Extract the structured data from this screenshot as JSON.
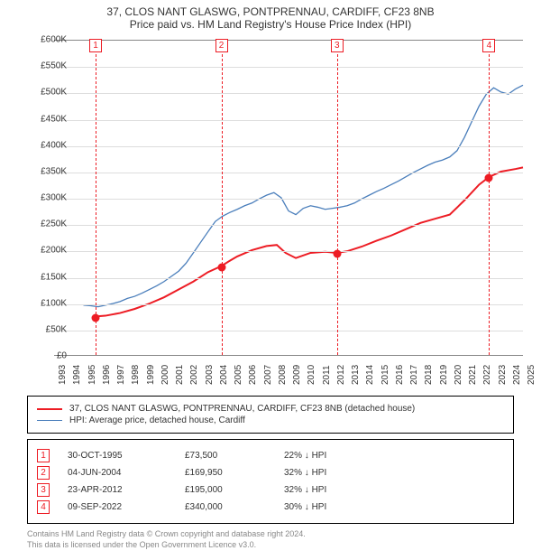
{
  "title": {
    "line1": "37, CLOS NANT GLASWG, PONTPRENNAU, CARDIFF, CF23 8NB",
    "line2": "Price paid vs. HM Land Registry's House Price Index (HPI)"
  },
  "chart": {
    "type": "line",
    "background_color": "#ffffff",
    "grid_color": "#dddddd",
    "axis_color": "#888888",
    "y_axis": {
      "min": 0,
      "max": 600000,
      "tick_step": 50000,
      "labels": [
        "£0",
        "£50K",
        "£100K",
        "£150K",
        "£200K",
        "£250K",
        "£300K",
        "£350K",
        "£400K",
        "£450K",
        "£500K",
        "£550K",
        "£600K"
      ],
      "label_fontsize": 10
    },
    "x_axis": {
      "min": 1993,
      "max": 2025,
      "labels": [
        "1993",
        "1994",
        "1995",
        "1996",
        "1997",
        "1998",
        "1999",
        "2000",
        "2001",
        "2002",
        "2003",
        "2004",
        "2005",
        "2006",
        "2007",
        "2008",
        "2009",
        "2010",
        "2011",
        "2012",
        "2013",
        "2014",
        "2015",
        "2016",
        "2017",
        "2018",
        "2019",
        "2020",
        "2021",
        "2022",
        "2023",
        "2024",
        "2025"
      ],
      "label_fontsize": 10
    },
    "series": [
      {
        "name": "property",
        "label": "37, CLOS NANT GLASWG, PONTPRENNAU, CARDIFF, CF23 8NB (detached house)",
        "color": "#ed1c24",
        "line_width": 2,
        "points": [
          [
            1995.83,
            73500
          ],
          [
            1996.5,
            75000
          ],
          [
            1997.5,
            80000
          ],
          [
            1998.5,
            88000
          ],
          [
            1999.5,
            98000
          ],
          [
            2000.5,
            110000
          ],
          [
            2001.5,
            125000
          ],
          [
            2002.5,
            140000
          ],
          [
            2003.5,
            158000
          ],
          [
            2004.42,
            169950
          ],
          [
            2005.0,
            180000
          ],
          [
            2005.5,
            188000
          ],
          [
            2006.5,
            200000
          ],
          [
            2007.5,
            208000
          ],
          [
            2008.2,
            210000
          ],
          [
            2008.8,
            195000
          ],
          [
            2009.5,
            185000
          ],
          [
            2010.5,
            195000
          ],
          [
            2011.5,
            197000
          ],
          [
            2012.31,
            195000
          ],
          [
            2013.0,
            198000
          ],
          [
            2014.0,
            207000
          ],
          [
            2015.0,
            218000
          ],
          [
            2016.0,
            228000
          ],
          [
            2017.0,
            240000
          ],
          [
            2018.0,
            252000
          ],
          [
            2019.0,
            260000
          ],
          [
            2020.0,
            268000
          ],
          [
            2021.0,
            295000
          ],
          [
            2022.0,
            325000
          ],
          [
            2022.69,
            340000
          ],
          [
            2023.5,
            350000
          ],
          [
            2024.5,
            355000
          ],
          [
            2025.0,
            358000
          ]
        ]
      },
      {
        "name": "hpi",
        "label": "HPI: Average price, detached house, Cardiff",
        "color": "#4a7ebb",
        "line_width": 1.3,
        "points": [
          [
            1995.0,
            95000
          ],
          [
            1995.5,
            94000
          ],
          [
            1996.0,
            92000
          ],
          [
            1996.5,
            95000
          ],
          [
            1997.0,
            98000
          ],
          [
            1997.5,
            102000
          ],
          [
            1998.0,
            108000
          ],
          [
            1998.5,
            112000
          ],
          [
            1999.0,
            118000
          ],
          [
            1999.5,
            125000
          ],
          [
            2000.0,
            132000
          ],
          [
            2000.5,
            140000
          ],
          [
            2001.0,
            150000
          ],
          [
            2001.5,
            160000
          ],
          [
            2002.0,
            175000
          ],
          [
            2002.5,
            195000
          ],
          [
            2003.0,
            215000
          ],
          [
            2003.5,
            235000
          ],
          [
            2004.0,
            255000
          ],
          [
            2004.5,
            265000
          ],
          [
            2005.0,
            272000
          ],
          [
            2005.5,
            278000
          ],
          [
            2006.0,
            285000
          ],
          [
            2006.5,
            290000
          ],
          [
            2007.0,
            298000
          ],
          [
            2007.5,
            305000
          ],
          [
            2008.0,
            310000
          ],
          [
            2008.5,
            300000
          ],
          [
            2009.0,
            275000
          ],
          [
            2009.5,
            268000
          ],
          [
            2010.0,
            280000
          ],
          [
            2010.5,
            285000
          ],
          [
            2011.0,
            282000
          ],
          [
            2011.5,
            278000
          ],
          [
            2012.0,
            280000
          ],
          [
            2012.5,
            282000
          ],
          [
            2013.0,
            285000
          ],
          [
            2013.5,
            290000
          ],
          [
            2014.0,
            298000
          ],
          [
            2014.5,
            305000
          ],
          [
            2015.0,
            312000
          ],
          [
            2015.5,
            318000
          ],
          [
            2016.0,
            325000
          ],
          [
            2016.5,
            332000
          ],
          [
            2017.0,
            340000
          ],
          [
            2017.5,
            348000
          ],
          [
            2018.0,
            355000
          ],
          [
            2018.5,
            362000
          ],
          [
            2019.0,
            368000
          ],
          [
            2019.5,
            372000
          ],
          [
            2020.0,
            378000
          ],
          [
            2020.5,
            390000
          ],
          [
            2021.0,
            415000
          ],
          [
            2021.5,
            445000
          ],
          [
            2022.0,
            475000
          ],
          [
            2022.5,
            498000
          ],
          [
            2023.0,
            510000
          ],
          [
            2023.5,
            502000
          ],
          [
            2024.0,
            498000
          ],
          [
            2024.5,
            508000
          ],
          [
            2025.0,
            515000
          ]
        ]
      }
    ],
    "transaction_markers": [
      {
        "n": "1",
        "year": 1995.83,
        "price": 73500
      },
      {
        "n": "2",
        "year": 2004.42,
        "price": 169950
      },
      {
        "n": "3",
        "year": 2012.31,
        "price": 195000
      },
      {
        "n": "4",
        "year": 2022.69,
        "price": 340000
      }
    ]
  },
  "legend": [
    {
      "color": "#ed1c24",
      "width": 2,
      "text": "37, CLOS NANT GLASWG, PONTPRENNAU, CARDIFF, CF23 8NB (detached house)"
    },
    {
      "color": "#4a7ebb",
      "width": 1.3,
      "text": "HPI: Average price, detached house, Cardiff"
    }
  ],
  "transactions": [
    {
      "n": "1",
      "date": "30-OCT-1995",
      "price": "£73,500",
      "diff": "22% ↓ HPI"
    },
    {
      "n": "2",
      "date": "04-JUN-2004",
      "price": "£169,950",
      "diff": "32% ↓ HPI"
    },
    {
      "n": "3",
      "date": "23-APR-2012",
      "price": "£195,000",
      "diff": "32% ↓ HPI"
    },
    {
      "n": "4",
      "date": "09-SEP-2022",
      "price": "£340,000",
      "diff": "30% ↓ HPI"
    }
  ],
  "footer": {
    "line1": "Contains HM Land Registry data © Crown copyright and database right 2024.",
    "line2": "This data is licensed under the Open Government Licence v3.0."
  }
}
